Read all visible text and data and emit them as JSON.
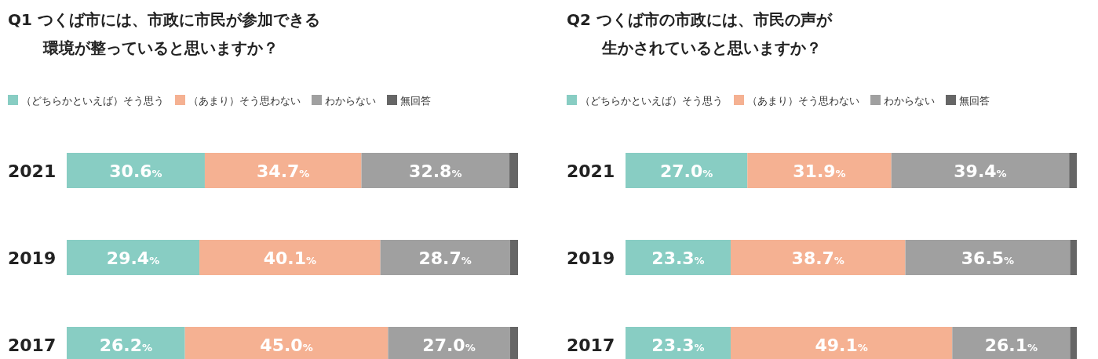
{
  "chart_data": [
    {
      "type": "bar",
      "orientation": "horizontal",
      "stacked": true,
      "title": "Q1 つくば市には、市政に市民が参加できる",
      "subtitle": "環境が整っていると思いますか？",
      "categories": [
        "2021",
        "2019",
        "2017"
      ],
      "xlim": [
        0,
        100
      ],
      "tick_labels": "y",
      "legend": "top",
      "series": [
        {
          "name": "（どちらかといえば）そう思う",
          "color": "#88cdc3",
          "values": [
            30.6,
            29.4,
            26.2
          ],
          "value_labels": [
            "30.6%",
            "29.4%",
            "26.2%"
          ]
        },
        {
          "name": "（あまり）そう思わない",
          "color": "#f5b192",
          "values": [
            34.7,
            40.1,
            45.0
          ],
          "value_labels": [
            "34.7%",
            "40.1%",
            "45.0%"
          ]
        },
        {
          "name": "わからない",
          "color": "#a0a0a0",
          "values": [
            32.8,
            28.7,
            27.0
          ],
          "value_labels": [
            "32.8%",
            "28.7%",
            "27.0%"
          ]
        },
        {
          "name": "無回答",
          "color": "#666666",
          "values": [
            1.9,
            1.8,
            1.8
          ]
        }
      ]
    },
    {
      "type": "bar",
      "orientation": "horizontal",
      "stacked": true,
      "title": "Q2 つくば市の市政には、市民の声が",
      "subtitle": "生かされていると思いますか？",
      "categories": [
        "2021",
        "2019",
        "2017"
      ],
      "xlim": [
        0,
        100
      ],
      "tick_labels": "y",
      "legend": "top",
      "series": [
        {
          "name": "（どちらかといえば）そう思う",
          "color": "#88cdc3",
          "values": [
            27.0,
            23.3,
            23.3
          ],
          "value_labels": [
            "27.0%",
            "23.3%",
            "23.3%"
          ]
        },
        {
          "name": "（あまり）そう思わない",
          "color": "#f5b192",
          "values": [
            31.9,
            38.7,
            49.1
          ],
          "value_labels": [
            "31.9%",
            "38.7%",
            "49.1%"
          ]
        },
        {
          "name": "わからない",
          "color": "#a0a0a0",
          "values": [
            39.4,
            36.5,
            26.1
          ],
          "value_labels": [
            "39.4%",
            "36.5%",
            "26.1%"
          ]
        },
        {
          "name": "無回答",
          "color": "#666666",
          "values": [
            1.7,
            1.5,
            1.5
          ]
        }
      ]
    }
  ]
}
